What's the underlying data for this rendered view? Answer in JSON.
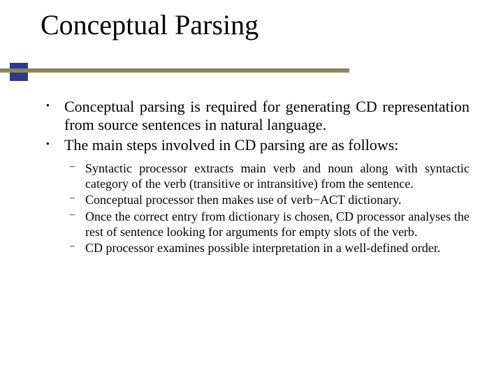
{
  "title": "Conceptual Parsing",
  "colors": {
    "background": "#ffffff",
    "text": "#000000",
    "rule_top": "#808080",
    "rule_bottom": "#968c42",
    "accent_box": "#2e3b82"
  },
  "typography": {
    "title_fontsize_pt": 40,
    "lvl1_fontsize_pt": 22,
    "lvl2_fontsize_pt": 18,
    "font_family": "Times New Roman"
  },
  "bullets_lvl1": [
    "Conceptual parsing is required for generating CD representation from source sentences in natural language.",
    "The main steps involved in CD parsing are as follows:"
  ],
  "bullets_lvl2": [
    "Syntactic processor extracts main verb and noun along with syntactic category of the verb (transitive or intransitive) from the sentence.",
    "Conceptual processor then makes use of verb−ACT dictionary.",
    "Once the correct entry from dictionary is chosen, CD processor analyses the rest of sentence looking for arguments for empty slots of the verb.",
    "CD processor examines possible interpretation in a well-defined order."
  ]
}
